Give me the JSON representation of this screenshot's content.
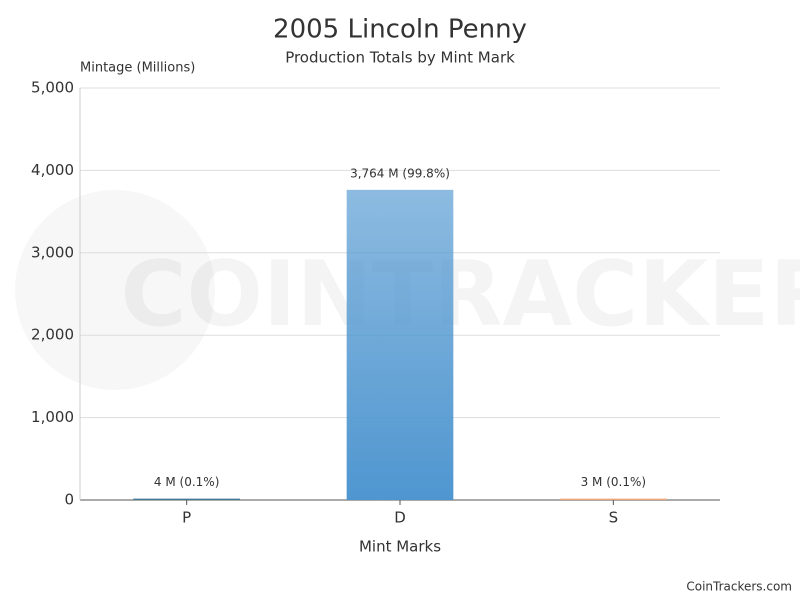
{
  "chart_data": {
    "type": "bar",
    "title": "2005 Lincoln Penny",
    "subtitle": "Production Totals by Mint Mark",
    "y_axis_label": "Mintage (Millions)",
    "x_axis_label": "Mint Marks",
    "categories": [
      "P",
      "D",
      "S"
    ],
    "values": [
      4,
      3764,
      3
    ],
    "value_labels": [
      "4 M (0.1%)",
      "3,764 M (99.8%)",
      "3 M (0.1%)"
    ],
    "colors": [
      "#2f6f8f",
      "#4f96d0",
      "#f0a070"
    ],
    "ylim": [
      0,
      5000
    ],
    "yticks": [
      0,
      {
        "value": 1000,
        "label": "1,000"
      },
      {
        "value": 2000,
        "label": "2,000"
      },
      {
        "value": 3000,
        "label": "3,000"
      },
      {
        "value": 4000,
        "label": "4,000"
      },
      {
        "value": 5000,
        "label": "5,000"
      }
    ],
    "grid": true,
    "watermark": "COINTRACKERS",
    "credit": "CoinTrackers.com"
  }
}
